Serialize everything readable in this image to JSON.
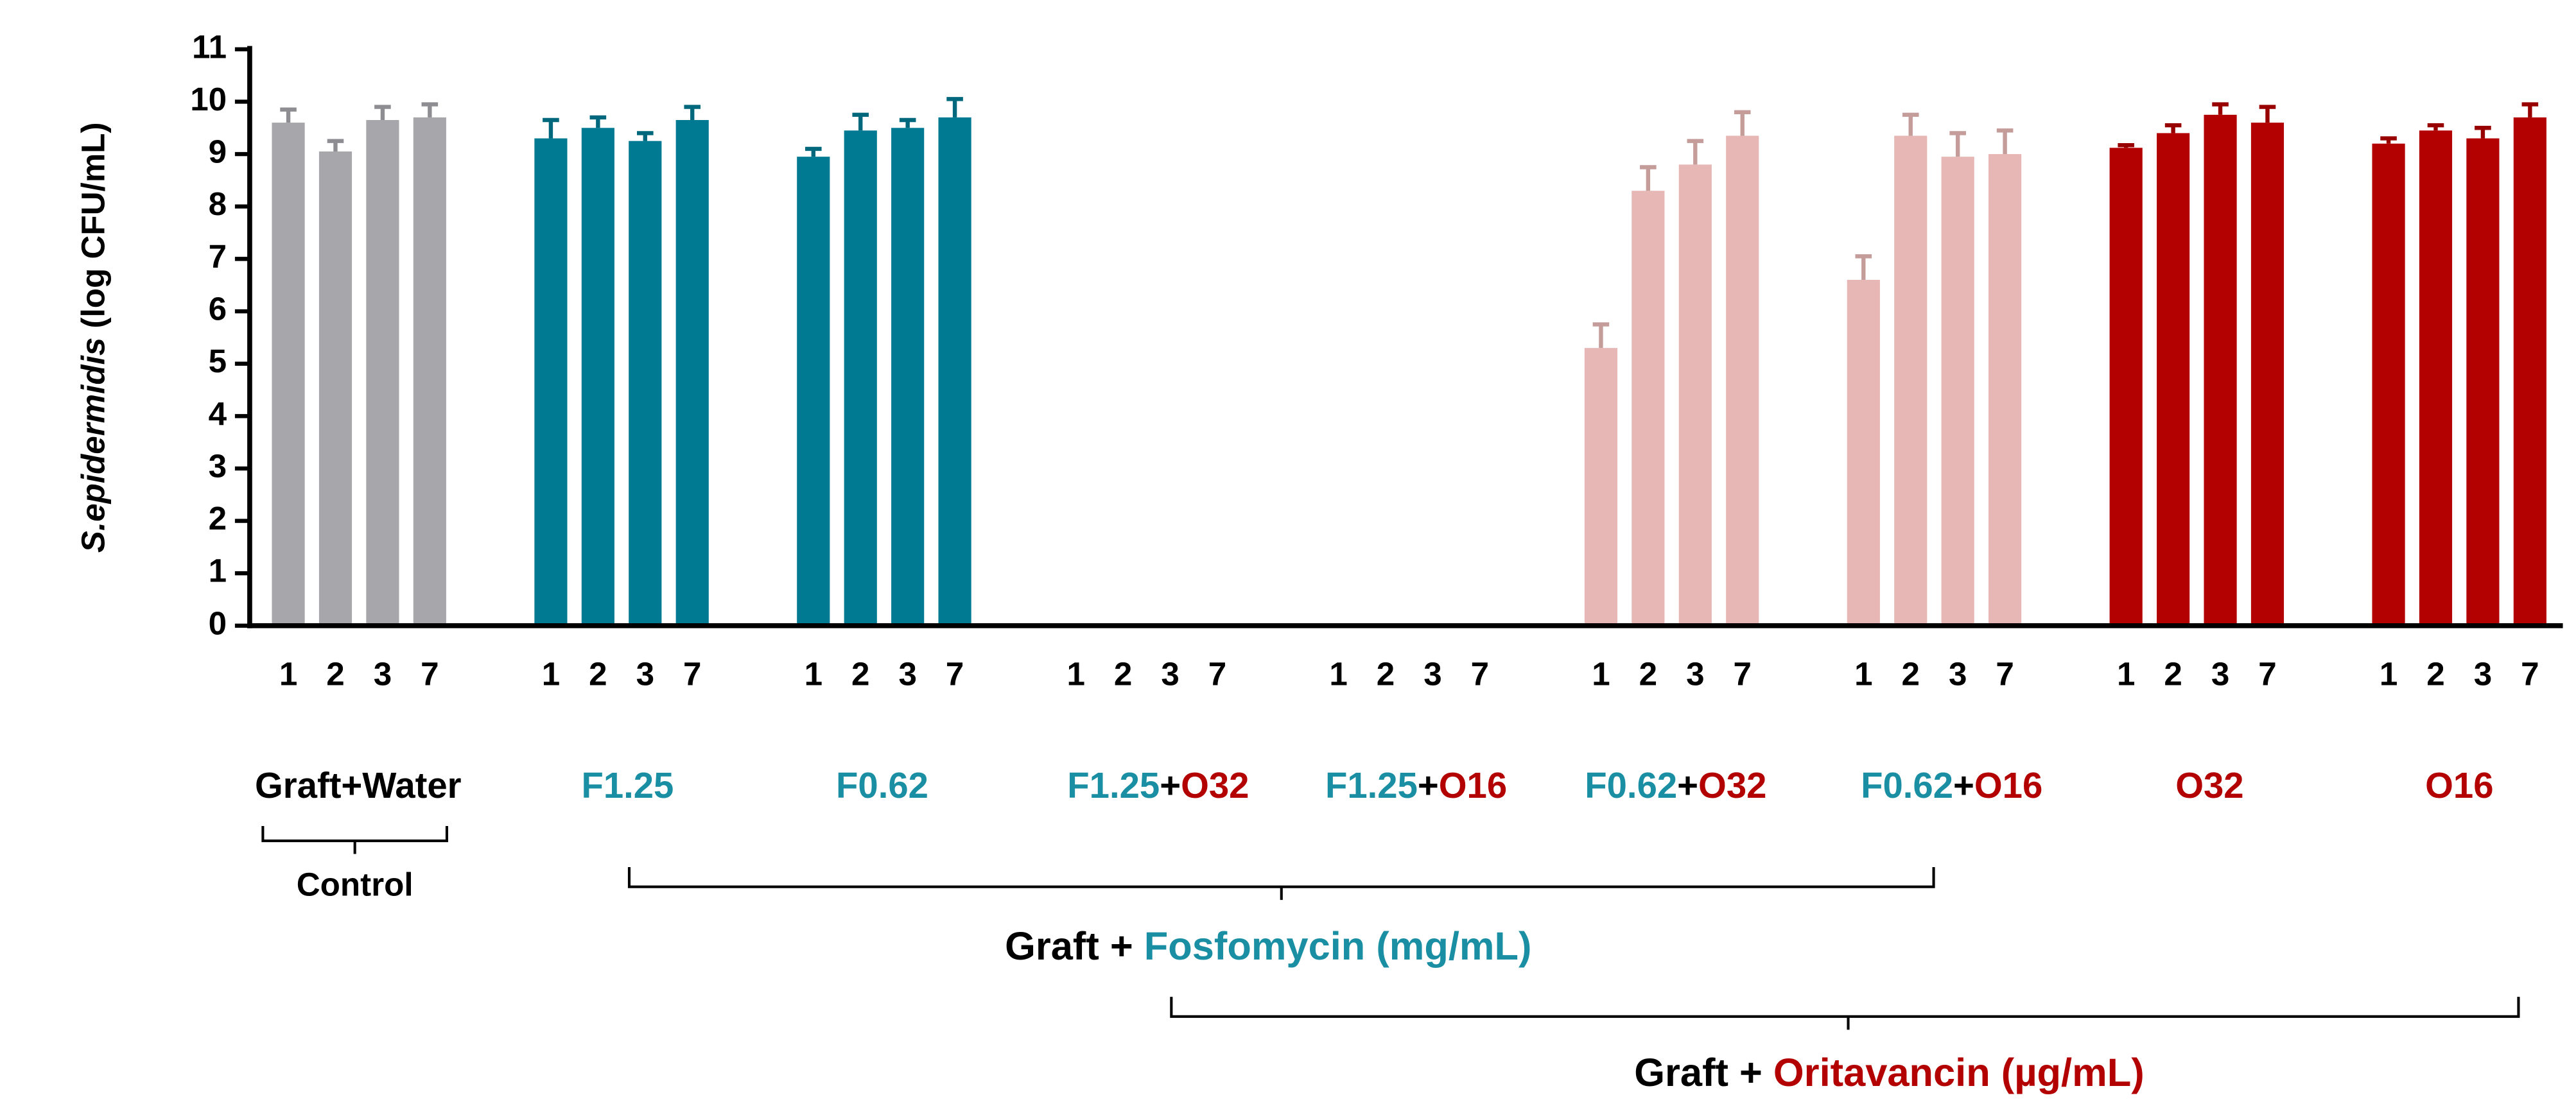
{
  "chart_data": {
    "type": "bar",
    "y_label": [
      {
        "text": "S.epidermidis",
        "italic": true
      },
      {
        "text": " (log CFU/mL)",
        "italic": false
      }
    ],
    "ylim": [
      0,
      11
    ],
    "yticks": [
      0,
      1,
      2,
      3,
      4,
      5,
      6,
      7,
      8,
      9,
      10,
      11
    ],
    "categories": [
      "1",
      "2",
      "3",
      "7"
    ],
    "groups": [
      {
        "label": [
          {
            "text": "Graft+Water",
            "color": "#000000"
          }
        ],
        "color": "#a7a6ab",
        "values": [
          9.6,
          9.05,
          9.65,
          9.7
        ],
        "errors": [
          0.25,
          0.2,
          0.25,
          0.25
        ]
      },
      {
        "label": [
          {
            "text": "F1.25",
            "color": "#1a8fa3"
          }
        ],
        "color": "#007a92",
        "values": [
          9.3,
          9.5,
          9.25,
          9.65
        ],
        "errors": [
          0.35,
          0.2,
          0.15,
          0.25
        ]
      },
      {
        "label": [
          {
            "text": "F0.62",
            "color": "#1a8fa3"
          }
        ],
        "color": "#007a92",
        "values": [
          8.95,
          9.45,
          9.5,
          9.7
        ],
        "errors": [
          0.15,
          0.3,
          0.15,
          0.35
        ]
      },
      {
        "label": [
          {
            "text": "F1.25",
            "color": "#1a8fa3"
          },
          {
            "text": "+",
            "color": "#000000"
          },
          {
            "text": "O32",
            "color": "#b30000"
          }
        ],
        "color": "#007a92",
        "values": [
          0,
          0,
          0,
          0
        ],
        "errors": [
          0,
          0,
          0,
          0
        ]
      },
      {
        "label": [
          {
            "text": "F1.25",
            "color": "#1a8fa3"
          },
          {
            "text": "+",
            "color": "#000000"
          },
          {
            "text": "O16",
            "color": "#b30000"
          }
        ],
        "color": "#007a92",
        "values": [
          0,
          0,
          0,
          0
        ],
        "errors": [
          0,
          0,
          0,
          0
        ]
      },
      {
        "label": [
          {
            "text": "F0.62",
            "color": "#1a8fa3"
          },
          {
            "text": "+",
            "color": "#000000"
          },
          {
            "text": "O32",
            "color": "#b30000"
          }
        ],
        "color": "#e6b7b5",
        "values": [
          5.3,
          8.3,
          8.8,
          9.35
        ],
        "errors": [
          0.45,
          0.45,
          0.45,
          0.45
        ]
      },
      {
        "label": [
          {
            "text": "F0.62",
            "color": "#1a8fa3"
          },
          {
            "text": "+",
            "color": "#000000"
          },
          {
            "text": "O16",
            "color": "#b30000"
          }
        ],
        "color": "#e6b7b5",
        "values": [
          6.6,
          9.35,
          8.95,
          9.0
        ],
        "errors": [
          0.45,
          0.4,
          0.45,
          0.45
        ]
      },
      {
        "label": [
          {
            "text": "O32",
            "color": "#b30000"
          }
        ],
        "color": "#b30000",
        "values": [
          9.12,
          9.4,
          9.75,
          9.6
        ],
        "errors": [
          0.05,
          0.15,
          0.2,
          0.3
        ]
      },
      {
        "label": [
          {
            "text": "O16",
            "color": "#b30000"
          }
        ],
        "color": "#b30000",
        "values": [
          9.2,
          9.45,
          9.3,
          9.7
        ],
        "errors": [
          0.1,
          0.1,
          0.2,
          0.25
        ]
      }
    ],
    "annotations": [
      [
        {
          "text": "Control",
          "color": "#000000"
        }
      ],
      [
        {
          "text": "Graft + ",
          "color": "#000000"
        },
        {
          "text": "Fosfomycin (mg/mL)",
          "color": "#1a8fa3"
        }
      ],
      [
        {
          "text": "Graft + ",
          "color": "#000000"
        },
        {
          "text": "Oritavancin (µg/mL)",
          "color": "#b30000"
        }
      ]
    ]
  }
}
